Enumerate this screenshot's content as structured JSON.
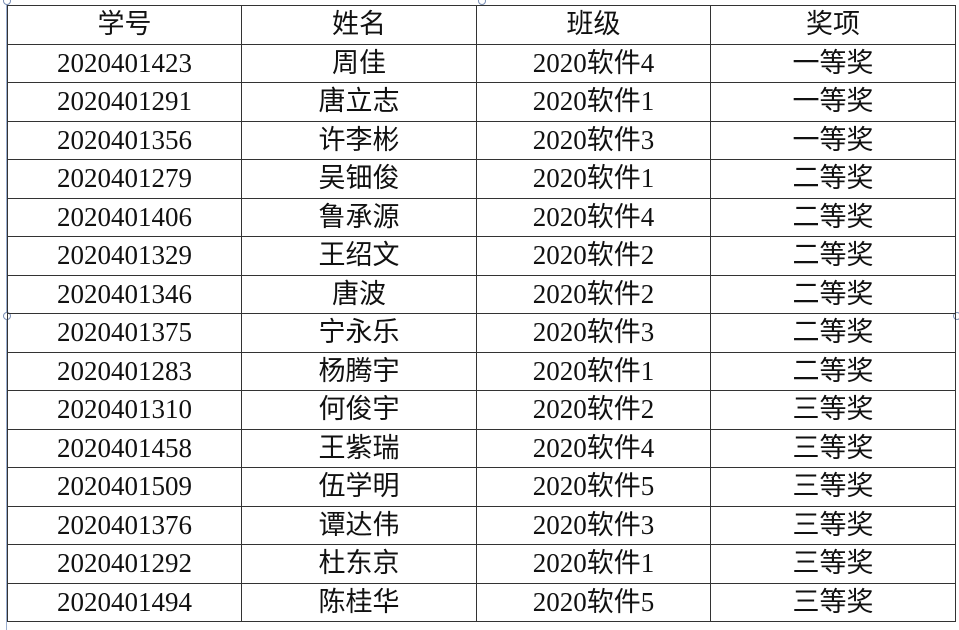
{
  "table": {
    "headers": [
      "学号",
      "姓名",
      "班级",
      "奖项"
    ],
    "rows": [
      [
        "2020401423",
        "周佳",
        "2020软件4",
        "一等奖"
      ],
      [
        "2020401291",
        "唐立志",
        "2020软件1",
        "一等奖"
      ],
      [
        "2020401356",
        "许李彬",
        "2020软件3",
        "一等奖"
      ],
      [
        "2020401279",
        "吴钿俊",
        "2020软件1",
        "二等奖"
      ],
      [
        "2020401406",
        "鲁承源",
        "2020软件4",
        "二等奖"
      ],
      [
        "2020401329",
        "王绍文",
        "2020软件2",
        "二等奖"
      ],
      [
        "2020401346",
        "唐波",
        "2020软件2",
        "二等奖"
      ],
      [
        "2020401375",
        "宁永乐",
        "2020软件3",
        "二等奖"
      ],
      [
        "2020401283",
        "杨腾宇",
        "2020软件1",
        "二等奖"
      ],
      [
        "2020401310",
        "何俊宇",
        "2020软件2",
        "三等奖"
      ],
      [
        "2020401458",
        "王紫瑞",
        "2020软件4",
        "三等奖"
      ],
      [
        "2020401509",
        "伍学明",
        "2020软件5",
        "三等奖"
      ],
      [
        "2020401376",
        "谭达伟",
        "2020软件3",
        "三等奖"
      ],
      [
        "2020401292",
        "杜东京",
        "2020软件1",
        "三等奖"
      ],
      [
        "2020401494",
        "陈桂华",
        "2020软件5",
        "三等奖"
      ]
    ]
  }
}
